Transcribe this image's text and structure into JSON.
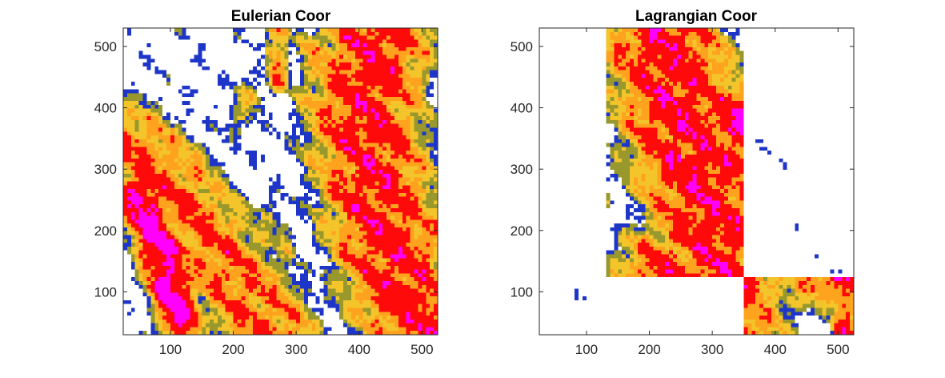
{
  "chart_data": [
    {
      "type": "heatmap",
      "title": "Eulerian Coor",
      "xlim": [
        25,
        525
      ],
      "ylim": [
        30,
        530
      ],
      "xticks": [
        100,
        200,
        300,
        400,
        500
      ],
      "yticks": [
        100,
        200,
        300,
        400,
        500
      ],
      "grid": false,
      "colors": [
        "#1e36c8",
        "#98982c",
        "#f3c52a",
        "#ffa21e",
        "#ff0a0a",
        "#ff00ff"
      ],
      "bands": [
        {
          "level": 0.72,
          "center": [
            [
              550,
              0
            ],
            [
              510,
              40
            ],
            [
              470,
              100
            ],
            [
              440,
              200
            ],
            [
              420,
              300
            ],
            [
              405,
              400
            ],
            [
              430,
              530
            ]
          ],
          "halfwidth": 85
        },
        {
          "level": 0.62,
          "center": [
            [
              260,
              30
            ],
            [
              210,
              110
            ],
            [
              150,
              190
            ],
            [
              90,
              280
            ],
            [
              40,
              330
            ]
          ],
          "halfwidth": 70
        },
        {
          "level": 0.9,
          "center": [
            [
              115,
              60
            ],
            [
              90,
              150
            ],
            [
              50,
              260
            ]
          ],
          "halfwidth": 35
        },
        {
          "level": 0.45,
          "center": [
            [
              380,
              380
            ],
            [
              350,
              430
            ],
            [
              330,
              500
            ]
          ],
          "halfwidth": 28
        },
        {
          "level": 0.55,
          "center": [
            [
              270,
              530
            ],
            [
              270,
              440
            ]
          ],
          "halfwidth": 16
        },
        {
          "level": 0.3,
          "center": [
            [
              230,
              430
            ],
            [
              210,
              380
            ]
          ],
          "halfwidth": 22
        },
        {
          "level": 0.3,
          "center": [
            [
              290,
              170
            ],
            [
              250,
              240
            ]
          ],
          "halfwidth": 15
        }
      ]
    },
    {
      "type": "heatmap",
      "title": "Lagrangian Coor",
      "xlim": [
        25,
        525
      ],
      "ylim": [
        30,
        530
      ],
      "xticks": [
        100,
        200,
        300,
        400,
        500
      ],
      "yticks": [
        100,
        200,
        300,
        400,
        500
      ],
      "grid": false,
      "colors": [
        "#1e36c8",
        "#98982c",
        "#f3c52a",
        "#ffa21e",
        "#ff0a0a",
        "#ff00ff"
      ],
      "blank_regions": [
        [
          25,
          350,
          30,
          125
        ],
        [
          350,
          525,
          125,
          530
        ],
        [
          25,
          130,
          120,
          530
        ]
      ],
      "bands": [
        {
          "level": 0.75,
          "center": [
            [
              320,
              130
            ],
            [
              290,
              250
            ],
            [
              250,
              380
            ],
            [
              220,
              530
            ]
          ],
          "halfwidth": 90
        },
        {
          "level": 0.85,
          "center": [
            [
              490,
              150
            ],
            [
              430,
              250
            ],
            [
              375,
              330
            ],
            [
              350,
              380
            ]
          ],
          "halfwidth": 65
        },
        {
          "level": 0.7,
          "center": [
            [
              330,
              30
            ],
            [
              270,
              80
            ],
            [
              230,
              125
            ]
          ],
          "halfwidth": 80
        },
        {
          "level": 0.85,
          "center": [
            [
              100,
              30
            ],
            [
              90,
              100
            ]
          ],
          "halfwidth": 30
        },
        {
          "level": 0.7,
          "center": [
            [
              510,
              30
            ],
            [
              510,
              120
            ]
          ],
          "halfwidth": 18
        },
        {
          "level": 0.3,
          "center": [
            [
              120,
              260
            ],
            [
              60,
              330
            ]
          ],
          "halfwidth": 20
        },
        {
          "level": 0.5,
          "center": [
            [
              510,
              450
            ],
            [
              505,
              530
            ]
          ],
          "halfwidth": 14
        },
        {
          "level": 0.4,
          "center": [
            [
              420,
              80
            ],
            [
              380,
              60
            ]
          ],
          "halfwidth": 25
        }
      ]
    }
  ]
}
